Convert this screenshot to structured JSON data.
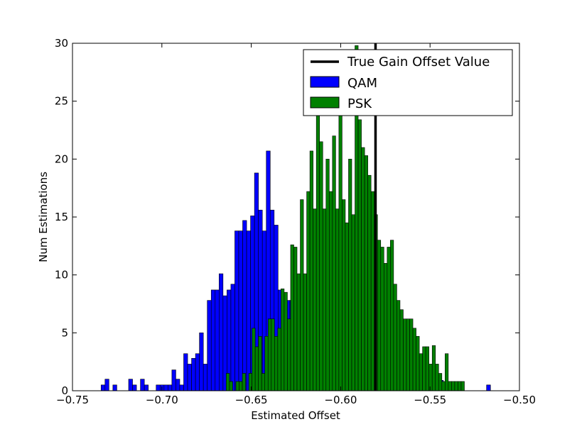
{
  "chart_data": {
    "type": "bar",
    "xlabel": "Estimated Offset",
    "ylabel": "Num Estimations",
    "xlim": [
      -0.75,
      -0.5
    ],
    "ylim": [
      0,
      30
    ],
    "xticks": [
      -0.75,
      -0.7,
      -0.65,
      -0.6,
      -0.55,
      -0.5
    ],
    "xtick_labels": [
      "−0.75",
      "−0.70",
      "−0.65",
      "−0.60",
      "−0.55",
      "−0.50"
    ],
    "yticks": [
      0,
      5,
      10,
      15,
      20,
      25,
      30
    ],
    "ytick_labels": [
      "0",
      "5",
      "10",
      "15",
      "20",
      "25",
      "30"
    ],
    "grid": false,
    "legend_position": "top-right",
    "reference_line": {
      "name": "True Gain Offset Value",
      "x": -0.5805,
      "color": "#000000"
    },
    "series": [
      {
        "name": "QAM",
        "color": "#0000ff",
        "bin_width": 0.0022,
        "bins": [
          [
            -0.734,
            0.5
          ],
          [
            -0.7318,
            1.0
          ],
          [
            -0.7274,
            0.5
          ],
          [
            -0.7186,
            1.0
          ],
          [
            -0.7164,
            0.5
          ],
          [
            -0.712,
            1.0
          ],
          [
            -0.7098,
            0.5
          ],
          [
            -0.7032,
            0.5
          ],
          [
            -0.701,
            0.5
          ],
          [
            -0.6988,
            0.5
          ],
          [
            -0.6966,
            0.5
          ],
          [
            -0.6944,
            1.8
          ],
          [
            -0.6922,
            1.0
          ],
          [
            -0.69,
            0.5
          ],
          [
            -0.6878,
            3.2
          ],
          [
            -0.6856,
            2.3
          ],
          [
            -0.6834,
            2.8
          ],
          [
            -0.6812,
            3.2
          ],
          [
            -0.679,
            5.0
          ],
          [
            -0.6768,
            2.3
          ],
          [
            -0.6746,
            7.8
          ],
          [
            -0.6724,
            8.7
          ],
          [
            -0.6702,
            8.7
          ],
          [
            -0.668,
            10.1
          ],
          [
            -0.6658,
            8.2
          ],
          [
            -0.6636,
            8.7
          ],
          [
            -0.6614,
            9.2
          ],
          [
            -0.6592,
            13.8
          ],
          [
            -0.657,
            13.8
          ],
          [
            -0.6548,
            14.7
          ],
          [
            -0.6526,
            13.8
          ],
          [
            -0.6504,
            15.1
          ],
          [
            -0.6482,
            18.8
          ],
          [
            -0.646,
            15.6
          ],
          [
            -0.6438,
            13.8
          ],
          [
            -0.6416,
            20.7
          ],
          [
            -0.6394,
            15.6
          ],
          [
            -0.6372,
            14.3
          ],
          [
            -0.635,
            8.7
          ],
          [
            -0.6328,
            6.9
          ],
          [
            -0.6306,
            7.8
          ],
          [
            -0.6284,
            7.8
          ],
          [
            -0.6262,
            6.9
          ],
          [
            -0.624,
            5.0
          ],
          [
            -0.6218,
            3.7
          ],
          [
            -0.6196,
            3.7
          ],
          [
            -0.6174,
            3.2
          ],
          [
            -0.6152,
            2.8
          ],
          [
            -0.613,
            2.3
          ],
          [
            -0.6108,
            2.3
          ],
          [
            -0.6086,
            1.8
          ],
          [
            -0.6064,
            1.8
          ],
          [
            -0.6042,
            1.0
          ],
          [
            -0.602,
            1.4
          ],
          [
            -0.5998,
            1.0
          ],
          [
            -0.5976,
            0.9
          ],
          [
            -0.5954,
            0.5
          ],
          [
            -0.5932,
            0.5
          ],
          [
            -0.591,
            0.5
          ],
          [
            -0.5888,
            0.5
          ],
          [
            -0.5866,
            0.5
          ],
          [
            -0.5844,
            0.5
          ],
          [
            -0.5822,
            0.5
          ],
          [
            -0.58,
            0.5
          ],
          [
            -0.5778,
            0.5
          ],
          [
            -0.5756,
            0.5
          ],
          [
            -0.5734,
            0.5
          ],
          [
            -0.5712,
            0.5
          ],
          [
            -0.569,
            0.5
          ],
          [
            -0.5668,
            0.5
          ],
          [
            -0.5646,
            0.5
          ],
          [
            -0.5624,
            0.5
          ],
          [
            -0.5602,
            0.5
          ],
          [
            -0.558,
            0.5
          ],
          [
            -0.5558,
            0.5
          ],
          [
            -0.5536,
            0.9
          ],
          [
            -0.5514,
            0.9
          ],
          [
            -0.5492,
            0.5
          ],
          [
            -0.547,
            0.5
          ],
          [
            -0.5448,
            0.9
          ],
          [
            -0.5426,
            0.5
          ],
          [
            -0.5404,
            0.5
          ],
          [
            -0.5382,
            0.5
          ],
          [
            -0.536,
            0.5
          ],
          [
            -0.5184,
            0.5
          ]
        ]
      },
      {
        "name": "PSK",
        "color": "#008000",
        "bin_width": 0.0018,
        "bins": [
          [
            -0.664,
            1.5
          ],
          [
            -0.6622,
            0.8
          ],
          [
            -0.6586,
            0.8
          ],
          [
            -0.6568,
            0.8
          ],
          [
            -0.655,
            1.5
          ],
          [
            -0.6514,
            1.5
          ],
          [
            -0.6496,
            5.4
          ],
          [
            -0.6478,
            3.8
          ],
          [
            -0.646,
            4.7
          ],
          [
            -0.6442,
            1.5
          ],
          [
            -0.6424,
            4.7
          ],
          [
            -0.6406,
            6.2
          ],
          [
            -0.6388,
            6.2
          ],
          [
            -0.637,
            4.7
          ],
          [
            -0.6352,
            5.4
          ],
          [
            -0.6334,
            8.8
          ],
          [
            -0.6316,
            8.5
          ],
          [
            -0.6298,
            6.2
          ],
          [
            -0.628,
            12.6
          ],
          [
            -0.6262,
            12.4
          ],
          [
            -0.6244,
            10.1
          ],
          [
            -0.6226,
            16.5
          ],
          [
            -0.6208,
            10.1
          ],
          [
            -0.619,
            17.2
          ],
          [
            -0.6172,
            20.7
          ],
          [
            -0.6154,
            15.7
          ],
          [
            -0.6136,
            23.9
          ],
          [
            -0.6118,
            21.5
          ],
          [
            -0.61,
            15.7
          ],
          [
            -0.6082,
            20.0
          ],
          [
            -0.6064,
            17.2
          ],
          [
            -0.6046,
            22.0
          ],
          [
            -0.6028,
            15.7
          ],
          [
            -0.601,
            24.0
          ],
          [
            -0.5992,
            16.5
          ],
          [
            -0.5974,
            14.5
          ],
          [
            -0.5956,
            20.0
          ],
          [
            -0.5938,
            15.2
          ],
          [
            -0.592,
            29.8
          ],
          [
            -0.5902,
            23.4
          ],
          [
            -0.5884,
            21.0
          ],
          [
            -0.5866,
            20.3
          ],
          [
            -0.5848,
            18.6
          ],
          [
            -0.583,
            17.2
          ],
          [
            -0.5812,
            15.2
          ],
          [
            -0.5794,
            13.0
          ],
          [
            -0.5776,
            12.4
          ],
          [
            -0.5758,
            11.0
          ],
          [
            -0.574,
            12.4
          ],
          [
            -0.5722,
            13.0
          ],
          [
            -0.5704,
            9.2
          ],
          [
            -0.5686,
            7.8
          ],
          [
            -0.5668,
            7.0
          ],
          [
            -0.565,
            6.2
          ],
          [
            -0.5632,
            6.2
          ],
          [
            -0.5614,
            6.2
          ],
          [
            -0.5596,
            5.4
          ],
          [
            -0.5578,
            4.7
          ],
          [
            -0.556,
            3.2
          ],
          [
            -0.5542,
            3.8
          ],
          [
            -0.5524,
            3.8
          ],
          [
            -0.5506,
            2.3
          ],
          [
            -0.5488,
            3.9
          ],
          [
            -0.547,
            2.3
          ],
          [
            -0.5452,
            1.5
          ],
          [
            -0.5434,
            0.8
          ],
          [
            -0.5416,
            3.2
          ],
          [
            -0.5398,
            0.8
          ],
          [
            -0.538,
            0.8
          ],
          [
            -0.5362,
            0.8
          ],
          [
            -0.5344,
            0.8
          ],
          [
            -0.5326,
            0.8
          ]
        ]
      }
    ]
  }
}
